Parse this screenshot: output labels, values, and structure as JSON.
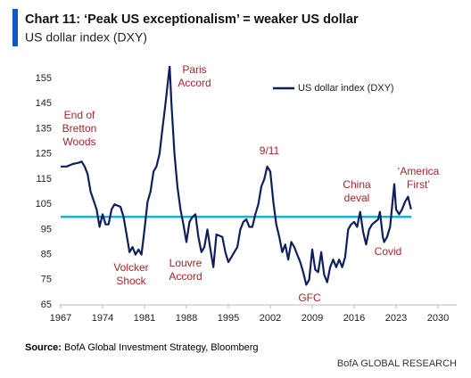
{
  "chart_data": {
    "type": "line",
    "title": "Chart 11: ‘Peak US exceptionalism’ = weaker US dollar",
    "subtitle": "US dollar index (DXY)",
    "source_label": "Source:",
    "source": "BofA Global Investment Strategy, Bloomberg",
    "footer": "BofA GLOBAL RESEARCH",
    "x": [
      1967,
      1968,
      1969,
      1970,
      1970.5,
      1971,
      1971.5,
      1972,
      1973,
      1973.5,
      1974,
      1974.5,
      1975,
      1975.5,
      1976,
      1977,
      1977.5,
      1978,
      1978.5,
      1979,
      1979.5,
      1980,
      1980.5,
      1981,
      1981.5,
      1982,
      1982.5,
      1983,
      1983.5,
      1984,
      1984.5,
      1985.2,
      1985.5,
      1986,
      1986.5,
      1987,
      1987.5,
      1988,
      1988.5,
      1989,
      1989.5,
      1990,
      1990.5,
      1991,
      1991.5,
      1992,
      1992.5,
      1993,
      1994,
      1994.5,
      1995,
      1995.5,
      1996,
      1996.5,
      1997,
      1997.5,
      1998,
      1998.5,
      1999,
      1999.5,
      2000,
      2000.5,
      2001,
      2001.5,
      2002,
      2002.5,
      2003,
      2003.5,
      2004,
      2004.5,
      2005,
      2005.5,
      2006,
      2006.5,
      2007,
      2007.5,
      2008,
      2008.5,
      2009,
      2009.5,
      2010,
      2010.5,
      2011,
      2011.5,
      2012,
      2012.5,
      2013,
      2013.5,
      2014,
      2014.5,
      2015,
      2015.5,
      2016,
      2016.5,
      2017,
      2017.5,
      2018,
      2018.5,
      2019,
      2019.5,
      2020,
      2020.3,
      2020.8,
      2021,
      2021.5,
      2022,
      2022.7,
      2023,
      2023.5,
      2024,
      2024.5,
      2025,
      2025.5
    ],
    "series": [
      {
        "name": "US dollar index (DXY)",
        "color": "#0f1f5c",
        "values": [
          120,
          120,
          121,
          121.5,
          122,
          120,
          117,
          110,
          103,
          96,
          101,
          97,
          97,
          103,
          105,
          104,
          100,
          93,
          86,
          88,
          85,
          87,
          85,
          95,
          106,
          110,
          118,
          120,
          125,
          135,
          145,
          160,
          145,
          125,
          112,
          103,
          97,
          90,
          98,
          100,
          101,
          92,
          86,
          88,
          95,
          87,
          80,
          93,
          92,
          86,
          82,
          84,
          86,
          88,
          95,
          98,
          99,
          96,
          96,
          101,
          105,
          112,
          115,
          120,
          118,
          106,
          97,
          92,
          86,
          89,
          83,
          90,
          88,
          85,
          82,
          78,
          73,
          75,
          87,
          79,
          78,
          86,
          77,
          74,
          80,
          83,
          80,
          83,
          80,
          84,
          95,
          97,
          98,
          96,
          102,
          94,
          89,
          95,
          97,
          98,
          99,
          102,
          92,
          90,
          92,
          96,
          113,
          103,
          101,
          103,
          106,
          108,
          103
        ]
      }
    ],
    "reference_line": 100,
    "reference_color": "#29a8e0",
    "xlim": [
      1967,
      2030
    ],
    "xticks": [
      1967,
      1974,
      1981,
      1988,
      1995,
      2002,
      2009,
      2016,
      2023,
      2030
    ],
    "ylim": [
      65,
      160
    ],
    "yticks": [
      65,
      75,
      85,
      95,
      105,
      115,
      125,
      135,
      145,
      155
    ],
    "annotations": [
      {
        "lines": [
          "End of",
          "Bretton",
          "Woods"
        ]
      },
      {
        "lines": [
          "Paris",
          "Accord"
        ]
      },
      {
        "lines": [
          "9/11"
        ]
      },
      {
        "lines": [
          "China",
          "deval"
        ]
      },
      {
        "lines": [
          "‘America",
          "First’"
        ]
      },
      {
        "lines": [
          "Volcker",
          "Shock"
        ]
      },
      {
        "lines": [
          "Louvre",
          "Accord"
        ]
      },
      {
        "lines": [
          "GFC"
        ]
      },
      {
        "lines": [
          "Covid"
        ]
      }
    ]
  }
}
